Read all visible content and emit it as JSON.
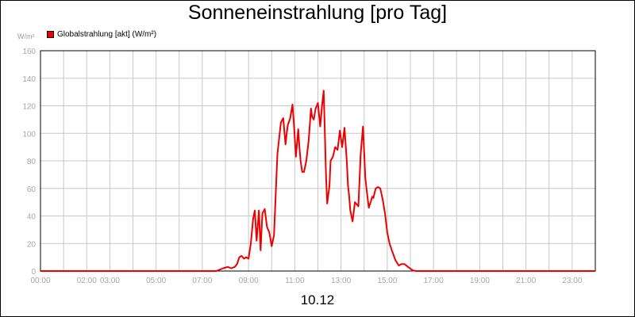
{
  "chart_data": {
    "type": "line",
    "title": "Sonneneinstrahlung [pro Tag]",
    "unit_label": "W/m²",
    "xlabel": "10.12",
    "ylabel": "W/m²",
    "ylim": [
      0,
      160
    ],
    "yticks": [
      0,
      20,
      40,
      60,
      80,
      100,
      120,
      140,
      160
    ],
    "xlim": [
      0,
      24
    ],
    "xtick_hours": [
      0,
      2,
      3,
      5,
      7,
      9,
      11,
      13,
      15,
      17,
      19,
      21,
      23
    ],
    "xtick_labels": [
      "00:00",
      "02:00",
      "03:00",
      "05:00",
      "07:00",
      "09:00",
      "11:00",
      "13:00",
      "15:00",
      "17:00",
      "19:00",
      "21:00",
      "23:00"
    ],
    "grid": true,
    "legend_position": "top-left",
    "series": [
      {
        "name": "Globalstrahlung [akt] (W/m²)",
        "color": "#ee0000",
        "x": [
          0,
          7.6,
          7.9,
          8.1,
          8.25,
          8.4,
          8.5,
          8.6,
          8.7,
          8.8,
          8.9,
          9.0,
          9.1,
          9.2,
          9.27,
          9.35,
          9.45,
          9.52,
          9.6,
          9.7,
          9.8,
          9.9,
          10.0,
          10.1,
          10.25,
          10.4,
          10.5,
          10.6,
          10.65,
          10.7,
          10.8,
          10.9,
          10.97,
          11.05,
          11.15,
          11.2,
          11.25,
          11.32,
          11.4,
          11.5,
          11.6,
          11.7,
          11.75,
          11.82,
          11.9,
          12.0,
          12.1,
          12.18,
          12.25,
          12.35,
          12.4,
          12.5,
          12.55,
          12.65,
          12.75,
          12.85,
          12.95,
          13.05,
          13.15,
          13.25,
          13.3,
          13.35,
          13.4,
          13.5,
          13.6,
          13.75,
          13.85,
          13.95,
          14.05,
          14.1,
          14.2,
          14.3,
          14.35,
          14.4,
          14.5,
          14.6,
          14.7,
          14.8,
          14.9,
          15.0,
          15.1,
          15.2,
          15.35,
          15.5,
          15.6,
          15.75,
          15.9,
          16.1,
          16.25,
          16.4,
          16.55,
          16.7,
          17.0,
          24.0
        ],
        "y": [
          0,
          0,
          2,
          3,
          2,
          3,
          5,
          10,
          11,
          9,
          10,
          9,
          20,
          38,
          44,
          22,
          44,
          15,
          42,
          45,
          32,
          28,
          18,
          26,
          85,
          108,
          111,
          92,
          100,
          106,
          111,
          121,
          105,
          83,
          103,
          90,
          80,
          72,
          72,
          80,
          95,
          118,
          112,
          110,
          118,
          122,
          105,
          120,
          131,
          70,
          49,
          62,
          80,
          83,
          90,
          88,
          102,
          90,
          104,
          80,
          62,
          55,
          44,
          36,
          50,
          47,
          85,
          105,
          68,
          60,
          46,
          51,
          54,
          53,
          60,
          61,
          60,
          52,
          42,
          28,
          20,
          15,
          8,
          4,
          5,
          5,
          3,
          0.5,
          0,
          0,
          0,
          0,
          0,
          0
        ]
      }
    ]
  }
}
